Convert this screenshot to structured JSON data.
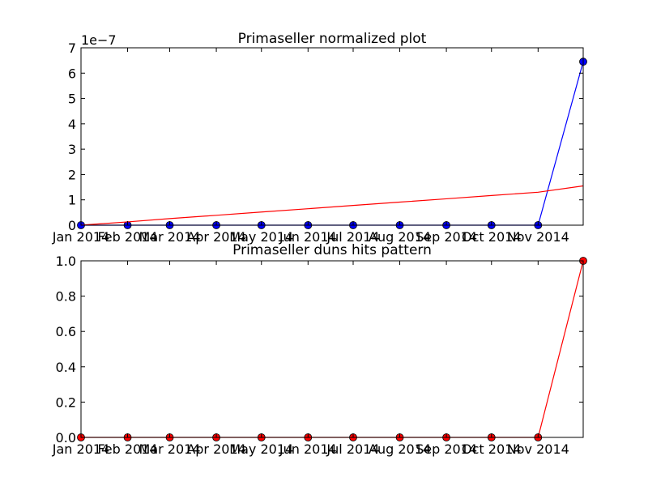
{
  "chart_data": [
    {
      "type": "line",
      "title": "Primaseller normalized plot",
      "xlabel": "",
      "ylabel": "",
      "y_offset_label": "1e−7",
      "x": [
        "2014-01",
        "2014-02",
        "2014-03",
        "2014-04",
        "2014-05",
        "2014-06",
        "2014-07",
        "2014-08",
        "2014-09",
        "2014-10",
        "2014-11",
        "2014-12"
      ],
      "x_tick_labels": [
        "Jan 2014",
        "Feb 2014",
        "Mar 2014",
        "Apr 2014",
        "May 2014",
        "Jun 2014",
        "Jul 2014",
        "Aug 2014",
        "Sep 2014",
        "Oct 2014",
        "Nov 2014"
      ],
      "y_tick_labels": [
        "0",
        "1",
        "2",
        "3",
        "4",
        "5",
        "6",
        "7"
      ],
      "ylim": [
        0,
        7e-07
      ],
      "series": [
        {
          "color": "#0000ff",
          "marker": "circle",
          "values": [
            0,
            0,
            0,
            0,
            0,
            0,
            0,
            0,
            0,
            0,
            0,
            6.45e-07
          ]
        },
        {
          "color": "#ff0000",
          "marker": "none",
          "values": [
            0,
            1.3e-08,
            2.6e-08,
            3.9e-08,
            5.2e-08,
            6.5e-08,
            7.8e-08,
            9.1e-08,
            1.04e-07,
            1.17e-07,
            1.3e-07,
            1.55e-07
          ]
        }
      ],
      "grid": false
    },
    {
      "type": "line",
      "title": "Primaseller duns hits pattern",
      "xlabel": "",
      "ylabel": "",
      "x": [
        "2014-01",
        "2014-02",
        "2014-03",
        "2014-04",
        "2014-05",
        "2014-06",
        "2014-07",
        "2014-08",
        "2014-09",
        "2014-10",
        "2014-11",
        "2014-12"
      ],
      "x_tick_labels": [
        "Jan 2014",
        "Feb 2014",
        "Mar 2014",
        "Apr 2014",
        "May 2014",
        "Jun 2014",
        "Jul 2014",
        "Aug 2014",
        "Sep 2014",
        "Oct 2014",
        "Nov 2014"
      ],
      "y_tick_labels": [
        "0.0",
        "0.2",
        "0.4",
        "0.6",
        "0.8",
        "1.0"
      ],
      "ylim": [
        0,
        1
      ],
      "series": [
        {
          "color": "#ff0000",
          "marker": "circle",
          "values": [
            0,
            0,
            0,
            0,
            0,
            0,
            0,
            0,
            0,
            0,
            0,
            1
          ]
        }
      ],
      "grid": false
    }
  ]
}
